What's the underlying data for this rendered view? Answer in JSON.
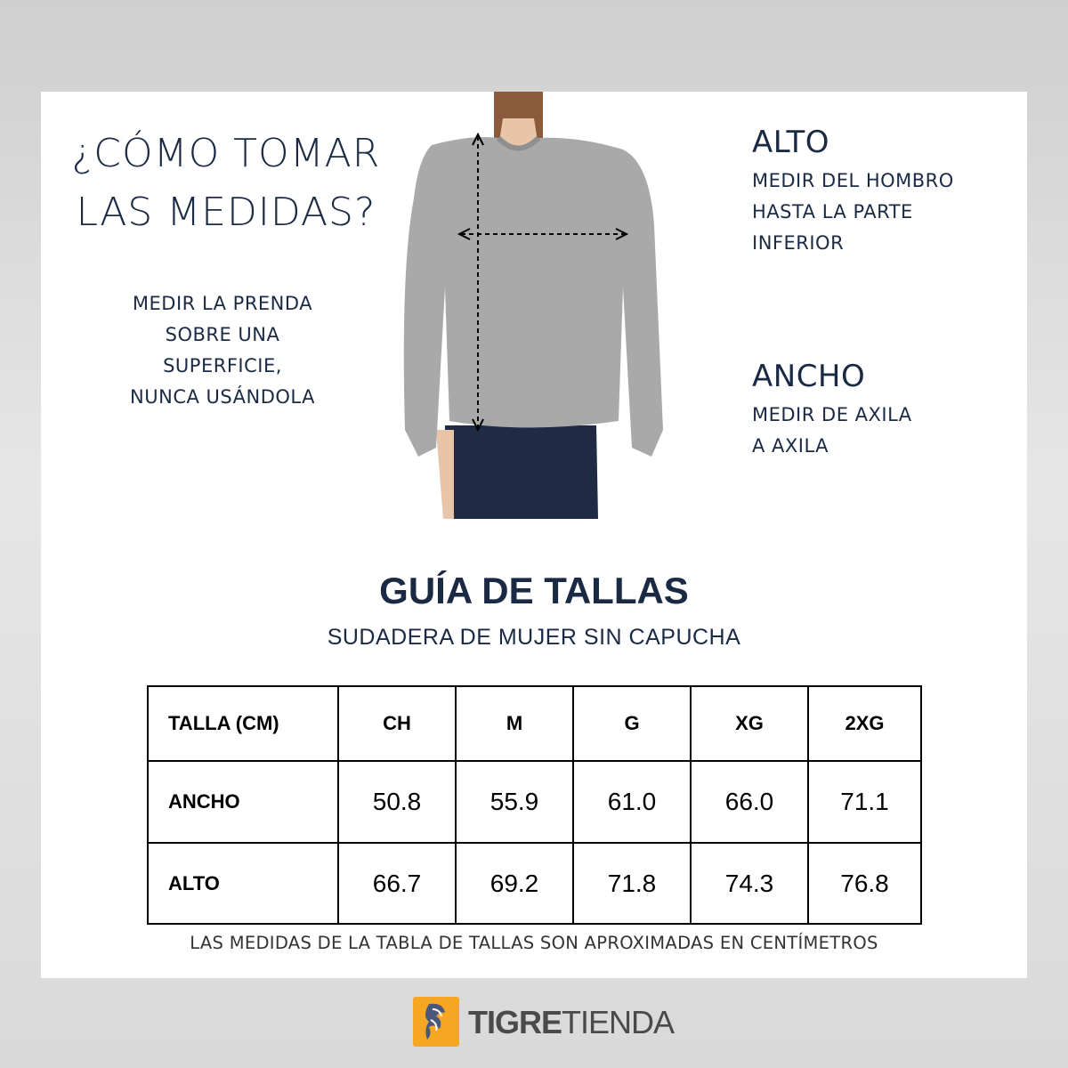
{
  "intro": {
    "title_line1": "¿CÓMO TOMAR",
    "title_line2": "LAS MEDIDAS?",
    "note": [
      "MEDIR LA PRENDA",
      "SOBRE UNA",
      "SUPERFICIE,",
      "NUNCA USÁNDOLA"
    ]
  },
  "alto": {
    "heading": "ALTO",
    "lines": [
      "MEDIR DEL HOMBRO",
      "HASTA LA PARTE",
      "INFERIOR"
    ]
  },
  "ancho": {
    "heading": "ANCHO",
    "lines": [
      "MEDIR DE AXILA",
      "A AXILA"
    ]
  },
  "guide": {
    "title": "GUÍA DE TALLAS",
    "subtitle": "SUDADERA DE MUJER SIN CAPUCHA"
  },
  "table": {
    "headers": [
      "TALLA (CM)",
      "CH",
      "M",
      "G",
      "XG",
      "2XG"
    ],
    "rows": [
      {
        "label": "ANCHO",
        "values": [
          "50.8",
          "55.9",
          "61.0",
          "66.0",
          "71.1"
        ]
      },
      {
        "label": "ALTO",
        "values": [
          "66.7",
          "69.2",
          "71.8",
          "74.3",
          "76.8"
        ]
      }
    ]
  },
  "footnote": "LAS MEDIDAS DE LA TABLA DE TALLAS SON APROXIMADAS EN CENTÍMETROS",
  "brand": {
    "bold": "TIGRE",
    "light": "TIENDA",
    "logo_color": "#f5a623"
  },
  "colors": {
    "text": "#1b2a44",
    "sweater": "#a9a9a9",
    "jeans": "#1f2a44"
  }
}
